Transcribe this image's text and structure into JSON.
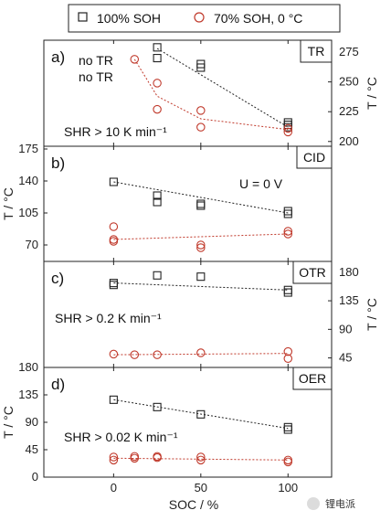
{
  "legend": {
    "entries": [
      {
        "label": "100% SOH",
        "marker": "square",
        "color": "#222222"
      },
      {
        "label": "70% SOH, 0 °C",
        "marker": "circle",
        "color": "#c0392b"
      }
    ]
  },
  "colors": {
    "soh100": "#222222",
    "soh70": "#c0392b"
  },
  "watermark": "锂电派",
  "chart_data": [
    {
      "type": "scatter",
      "panel": "a)",
      "tag": "TR",
      "annotations": [
        "no TR",
        "no TR",
        "SHR > 10 K min⁻¹"
      ],
      "ylabel": "T / °C",
      "ylabel_side": "right",
      "ylim": [
        196,
        285
      ],
      "yticks": [
        200,
        225,
        250,
        275
      ],
      "xlim": [
        -40,
        125
      ],
      "series": [
        {
          "name": "100% SOH",
          "marker": "square",
          "x": [
            25,
            25,
            50,
            50,
            100,
            100,
            100
          ],
          "y": [
            279,
            270,
            265,
            262,
            216,
            214,
            212
          ],
          "trend": [
            [
              25,
              278
            ],
            [
              100,
              212
            ]
          ]
        },
        {
          "name": "70% SOH, 0 °C",
          "marker": "circle",
          "x": [
            12,
            25,
            25,
            50,
            50,
            100,
            100
          ],
          "y": [
            269,
            249,
            227,
            226,
            212,
            211,
            208
          ],
          "trend": [
            [
              12,
              269
            ],
            [
              25,
              238
            ],
            [
              50,
              219
            ],
            [
              100,
              210
            ]
          ]
        }
      ]
    },
    {
      "type": "scatter",
      "panel": "b)",
      "tag": "CID",
      "annotations": [
        "U = 0 V"
      ],
      "ylabel": "T / °C",
      "ylabel_side": "left",
      "ylim": [
        52,
        178
      ],
      "yticks": [
        70,
        105,
        140,
        175
      ],
      "xlim": [
        -40,
        125
      ],
      "series": [
        {
          "name": "100% SOH",
          "marker": "square",
          "x": [
            0,
            25,
            25,
            50,
            50,
            100,
            100
          ],
          "y": [
            139,
            124,
            117,
            115,
            113,
            107,
            104
          ],
          "trend": [
            [
              0,
              139
            ],
            [
              100,
              105
            ]
          ]
        },
        {
          "name": "70% SOH, 0 °C",
          "marker": "circle",
          "x": [
            0,
            0,
            0,
            50,
            50,
            100,
            100
          ],
          "y": [
            90,
            76,
            74,
            70,
            67,
            85,
            82
          ],
          "trend": [
            [
              0,
              76
            ],
            [
              100,
              82
            ]
          ]
        }
      ]
    },
    {
      "type": "scatter",
      "panel": "c)",
      "tag": "OTR",
      "annotations": [
        "SHR > 0.2 K min⁻¹"
      ],
      "ylabel": "T / °C",
      "ylabel_side": "right",
      "ylim": [
        30,
        197
      ],
      "yticks": [
        45,
        90,
        135,
        180
      ],
      "xlim": [
        -40,
        125
      ],
      "series": [
        {
          "name": "100% SOH",
          "marker": "square",
          "x": [
            0,
            0,
            25,
            50,
            100,
            100
          ],
          "y": [
            163,
            160,
            175,
            173,
            152,
            148
          ],
          "trend": [
            [
              0,
              163
            ],
            [
              100,
              152
            ]
          ]
        },
        {
          "name": "70% SOH, 0 °C",
          "marker": "circle",
          "x": [
            0,
            12,
            25,
            50,
            100,
            100
          ],
          "y": [
            51,
            50,
            50,
            53,
            55,
            44
          ],
          "trend": [
            [
              0,
              50
            ],
            [
              100,
              52
            ]
          ]
        }
      ]
    },
    {
      "type": "scatter",
      "panel": "d)",
      "tag": "OER",
      "annotations": [
        "SHR > 0.02 K min⁻¹"
      ],
      "ylabel": "T / °C",
      "ylabel_side": "left",
      "xlabel": "SOC / %",
      "ylim": [
        0,
        180
      ],
      "yticks": [
        0,
        45,
        90,
        135,
        180
      ],
      "xlim": [
        -40,
        125
      ],
      "xticks": [
        0,
        50,
        100
      ],
      "series": [
        {
          "name": "100% SOH",
          "marker": "square",
          "x": [
            0,
            25,
            50,
            100,
            100
          ],
          "y": [
            127,
            115,
            103,
            82,
            78
          ],
          "trend": [
            [
              0,
              127
            ],
            [
              100,
              80
            ]
          ]
        },
        {
          "name": "70% SOH, 0 °C",
          "marker": "circle",
          "x": [
            0,
            0,
            12,
            12,
            25,
            25,
            50,
            50,
            100,
            100
          ],
          "y": [
            33,
            28,
            34,
            31,
            34,
            32,
            33,
            28,
            28,
            25
          ],
          "trend": [
            [
              0,
              31
            ],
            [
              100,
              28
            ]
          ]
        }
      ]
    }
  ]
}
